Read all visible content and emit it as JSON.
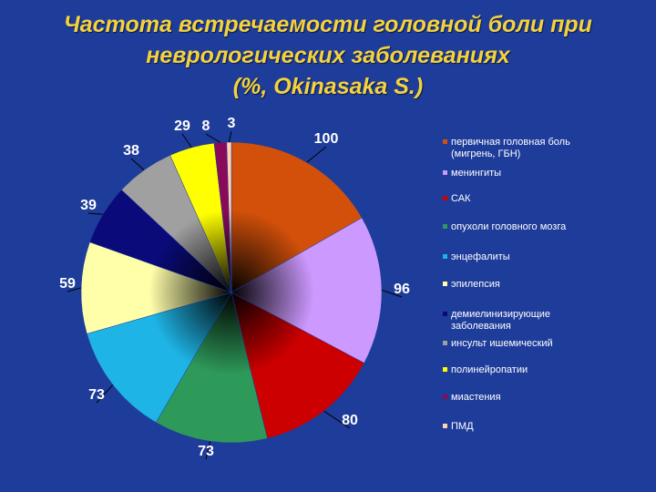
{
  "header": {
    "title_line1": "Частота встречаемости головной боли при",
    "title_line2": "неврологических заболеваниях",
    "title_line3": "(%, Okinasaka S.)"
  },
  "chart_data": {
    "type": "pie",
    "title": "Частота встречаемости головной боли при неврологических заболеваниях (%, Okinasaka S.)",
    "legend_position": "right",
    "slices": [
      {
        "label": "первичная головная боль\n(мигрень, ГБН)",
        "value": 100,
        "color": "#d2500a"
      },
      {
        "label": "менингиты",
        "value": 96,
        "color": "#cc99ff"
      },
      {
        "label": "САК",
        "value": 80,
        "color": "#cc0000"
      },
      {
        "label": "опухоли головного мозга",
        "value": 73,
        "color": "#2e9a5a"
      },
      {
        "label": "энцефалиты",
        "value": 73,
        "color": "#1eb4e6"
      },
      {
        "label": "эпилепсия",
        "value": 59,
        "color": "#ffffaa"
      },
      {
        "label": "демиелинизирующие\nзаболевания",
        "value": 39,
        "color": "#0a0a7a"
      },
      {
        "label": "инсульт ишемический",
        "value": 38,
        "color": "#a0a0a0"
      },
      {
        "label": "полинейропатии",
        "value": 29,
        "color": "#ffff00"
      },
      {
        "label": "миастения",
        "value": 8,
        "color": "#8a0a5a"
      },
      {
        "label": "ПМД",
        "value": 3,
        "color": "#ffd2b4"
      }
    ]
  }
}
